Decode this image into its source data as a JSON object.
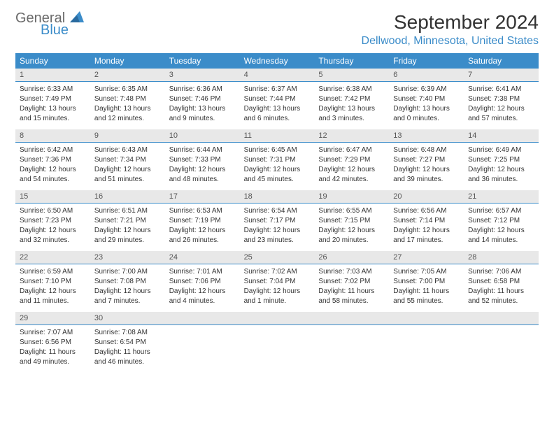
{
  "logo": {
    "text_general": "General",
    "text_blue": "Blue"
  },
  "header": {
    "month_title": "September 2024",
    "location": "Dellwood, Minnesota, United States"
  },
  "day_names": [
    "Sunday",
    "Monday",
    "Tuesday",
    "Wednesday",
    "Thursday",
    "Friday",
    "Saturday"
  ],
  "colors": {
    "header_blue": "#3b8cc9",
    "logo_blue": "#3b8cc9",
    "logo_gray": "#6b6b6b",
    "day_num_bg": "#e8e8e8",
    "text": "#333333",
    "white": "#ffffff"
  },
  "weeks": [
    {
      "days": [
        {
          "num": "1",
          "sunrise": "Sunrise: 6:33 AM",
          "sunset": "Sunset: 7:49 PM",
          "daylight1": "Daylight: 13 hours",
          "daylight2": "and 15 minutes."
        },
        {
          "num": "2",
          "sunrise": "Sunrise: 6:35 AM",
          "sunset": "Sunset: 7:48 PM",
          "daylight1": "Daylight: 13 hours",
          "daylight2": "and 12 minutes."
        },
        {
          "num": "3",
          "sunrise": "Sunrise: 6:36 AM",
          "sunset": "Sunset: 7:46 PM",
          "daylight1": "Daylight: 13 hours",
          "daylight2": "and 9 minutes."
        },
        {
          "num": "4",
          "sunrise": "Sunrise: 6:37 AM",
          "sunset": "Sunset: 7:44 PM",
          "daylight1": "Daylight: 13 hours",
          "daylight2": "and 6 minutes."
        },
        {
          "num": "5",
          "sunrise": "Sunrise: 6:38 AM",
          "sunset": "Sunset: 7:42 PM",
          "daylight1": "Daylight: 13 hours",
          "daylight2": "and 3 minutes."
        },
        {
          "num": "6",
          "sunrise": "Sunrise: 6:39 AM",
          "sunset": "Sunset: 7:40 PM",
          "daylight1": "Daylight: 13 hours",
          "daylight2": "and 0 minutes."
        },
        {
          "num": "7",
          "sunrise": "Sunrise: 6:41 AM",
          "sunset": "Sunset: 7:38 PM",
          "daylight1": "Daylight: 12 hours",
          "daylight2": "and 57 minutes."
        }
      ]
    },
    {
      "days": [
        {
          "num": "8",
          "sunrise": "Sunrise: 6:42 AM",
          "sunset": "Sunset: 7:36 PM",
          "daylight1": "Daylight: 12 hours",
          "daylight2": "and 54 minutes."
        },
        {
          "num": "9",
          "sunrise": "Sunrise: 6:43 AM",
          "sunset": "Sunset: 7:34 PM",
          "daylight1": "Daylight: 12 hours",
          "daylight2": "and 51 minutes."
        },
        {
          "num": "10",
          "sunrise": "Sunrise: 6:44 AM",
          "sunset": "Sunset: 7:33 PM",
          "daylight1": "Daylight: 12 hours",
          "daylight2": "and 48 minutes."
        },
        {
          "num": "11",
          "sunrise": "Sunrise: 6:45 AM",
          "sunset": "Sunset: 7:31 PM",
          "daylight1": "Daylight: 12 hours",
          "daylight2": "and 45 minutes."
        },
        {
          "num": "12",
          "sunrise": "Sunrise: 6:47 AM",
          "sunset": "Sunset: 7:29 PM",
          "daylight1": "Daylight: 12 hours",
          "daylight2": "and 42 minutes."
        },
        {
          "num": "13",
          "sunrise": "Sunrise: 6:48 AM",
          "sunset": "Sunset: 7:27 PM",
          "daylight1": "Daylight: 12 hours",
          "daylight2": "and 39 minutes."
        },
        {
          "num": "14",
          "sunrise": "Sunrise: 6:49 AM",
          "sunset": "Sunset: 7:25 PM",
          "daylight1": "Daylight: 12 hours",
          "daylight2": "and 36 minutes."
        }
      ]
    },
    {
      "days": [
        {
          "num": "15",
          "sunrise": "Sunrise: 6:50 AM",
          "sunset": "Sunset: 7:23 PM",
          "daylight1": "Daylight: 12 hours",
          "daylight2": "and 32 minutes."
        },
        {
          "num": "16",
          "sunrise": "Sunrise: 6:51 AM",
          "sunset": "Sunset: 7:21 PM",
          "daylight1": "Daylight: 12 hours",
          "daylight2": "and 29 minutes."
        },
        {
          "num": "17",
          "sunrise": "Sunrise: 6:53 AM",
          "sunset": "Sunset: 7:19 PM",
          "daylight1": "Daylight: 12 hours",
          "daylight2": "and 26 minutes."
        },
        {
          "num": "18",
          "sunrise": "Sunrise: 6:54 AM",
          "sunset": "Sunset: 7:17 PM",
          "daylight1": "Daylight: 12 hours",
          "daylight2": "and 23 minutes."
        },
        {
          "num": "19",
          "sunrise": "Sunrise: 6:55 AM",
          "sunset": "Sunset: 7:15 PM",
          "daylight1": "Daylight: 12 hours",
          "daylight2": "and 20 minutes."
        },
        {
          "num": "20",
          "sunrise": "Sunrise: 6:56 AM",
          "sunset": "Sunset: 7:14 PM",
          "daylight1": "Daylight: 12 hours",
          "daylight2": "and 17 minutes."
        },
        {
          "num": "21",
          "sunrise": "Sunrise: 6:57 AM",
          "sunset": "Sunset: 7:12 PM",
          "daylight1": "Daylight: 12 hours",
          "daylight2": "and 14 minutes."
        }
      ]
    },
    {
      "days": [
        {
          "num": "22",
          "sunrise": "Sunrise: 6:59 AM",
          "sunset": "Sunset: 7:10 PM",
          "daylight1": "Daylight: 12 hours",
          "daylight2": "and 11 minutes."
        },
        {
          "num": "23",
          "sunrise": "Sunrise: 7:00 AM",
          "sunset": "Sunset: 7:08 PM",
          "daylight1": "Daylight: 12 hours",
          "daylight2": "and 7 minutes."
        },
        {
          "num": "24",
          "sunrise": "Sunrise: 7:01 AM",
          "sunset": "Sunset: 7:06 PM",
          "daylight1": "Daylight: 12 hours",
          "daylight2": "and 4 minutes."
        },
        {
          "num": "25",
          "sunrise": "Sunrise: 7:02 AM",
          "sunset": "Sunset: 7:04 PM",
          "daylight1": "Daylight: 12 hours",
          "daylight2": "and 1 minute."
        },
        {
          "num": "26",
          "sunrise": "Sunrise: 7:03 AM",
          "sunset": "Sunset: 7:02 PM",
          "daylight1": "Daylight: 11 hours",
          "daylight2": "and 58 minutes."
        },
        {
          "num": "27",
          "sunrise": "Sunrise: 7:05 AM",
          "sunset": "Sunset: 7:00 PM",
          "daylight1": "Daylight: 11 hours",
          "daylight2": "and 55 minutes."
        },
        {
          "num": "28",
          "sunrise": "Sunrise: 7:06 AM",
          "sunset": "Sunset: 6:58 PM",
          "daylight1": "Daylight: 11 hours",
          "daylight2": "and 52 minutes."
        }
      ]
    },
    {
      "days": [
        {
          "num": "29",
          "sunrise": "Sunrise: 7:07 AM",
          "sunset": "Sunset: 6:56 PM",
          "daylight1": "Daylight: 11 hours",
          "daylight2": "and 49 minutes."
        },
        {
          "num": "30",
          "sunrise": "Sunrise: 7:08 AM",
          "sunset": "Sunset: 6:54 PM",
          "daylight1": "Daylight: 11 hours",
          "daylight2": "and 46 minutes."
        },
        {
          "empty": true
        },
        {
          "empty": true
        },
        {
          "empty": true
        },
        {
          "empty": true
        },
        {
          "empty": true
        }
      ]
    }
  ]
}
